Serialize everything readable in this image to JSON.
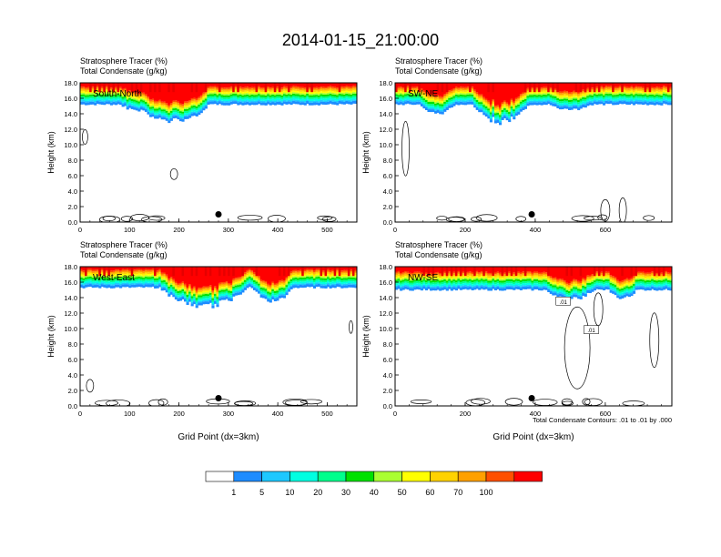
{
  "figure": {
    "title": "2014-01-15_21:00:00",
    "colors": [
      "#ffffff",
      "#1e8cff",
      "#1ec8ff",
      "#00ffe1",
      "#00ff8c",
      "#00e100",
      "#aaff32",
      "#ffff00",
      "#ffd200",
      "#ffa000",
      "#ff5000",
      "#ff0000"
    ],
    "colorbar_labels": [
      "1",
      "5",
      "10",
      "20",
      "30",
      "40",
      "50",
      "60",
      "70",
      "100"
    ],
    "contour_note": "Total Condensate Contours: .01 to .01 by .000"
  },
  "chart_data": [
    {
      "type": "heatmap",
      "label": "South-North",
      "title_line1": "Stratosphere Tracer   (%)",
      "title_line2": "Total Condensate   (g/kg)",
      "xlabel": "",
      "ylabel": "Height (km)",
      "xlim": [
        0,
        560
      ],
      "ylim": [
        0,
        18
      ],
      "xticks": [
        0,
        100,
        200,
        300,
        400,
        500
      ],
      "yticks": [
        "0.0",
        "2.0",
        "4.0",
        "6.0",
        "8.0",
        "10.0",
        "12.0",
        "14.0",
        "16.0",
        "18.0"
      ],
      "tracer_base_km": 15.2,
      "tracer_dip": [
        {
          "x": 180,
          "w": 50,
          "depth": 2.5
        },
        {
          "x": 230,
          "w": 30,
          "depth": 1.6
        },
        {
          "x": 120,
          "w": 40,
          "depth": 0.9
        }
      ],
      "marker": {
        "x": 280,
        "y": 1.0
      }
    },
    {
      "type": "heatmap",
      "label": "SW-NE",
      "title_line1": "Stratosphere Tracer   (%)",
      "title_line2": "Total Condensate   (g/kg)",
      "xlabel": "",
      "ylabel": "Height (km)",
      "xlim": [
        0,
        790
      ],
      "ylim": [
        0,
        18
      ],
      "xticks": [
        0,
        200,
        400,
        600
      ],
      "yticks": [
        "0.0",
        "2.0",
        "4.0",
        "6.0",
        "8.0",
        "10.0",
        "12.0",
        "14.0",
        "16.0",
        "18.0"
      ],
      "tracer_base_km": 15.2,
      "tracer_dip": [
        {
          "x": 300,
          "w": 80,
          "depth": 2.6
        },
        {
          "x": 120,
          "w": 50,
          "depth": 1.4
        },
        {
          "x": 500,
          "w": 60,
          "depth": 0.8
        }
      ],
      "marker": {
        "x": 390,
        "y": 1.0
      }
    },
    {
      "type": "heatmap",
      "label": "West-East",
      "title_line1": "Stratosphere Tracer   (%)",
      "title_line2": "Total Condensate   (g/kg)",
      "xlabel": "Grid Point (dx=3km)",
      "ylabel": "Height (km)",
      "xlim": [
        0,
        560
      ],
      "ylim": [
        0,
        18
      ],
      "xticks": [
        0,
        100,
        200,
        300,
        400,
        500
      ],
      "yticks": [
        "0.0",
        "2.0",
        "4.0",
        "6.0",
        "8.0",
        "10.0",
        "12.0",
        "14.0",
        "16.0",
        "18.0"
      ],
      "tracer_base_km": 15.3,
      "tracer_dip": [
        {
          "x": 250,
          "w": 90,
          "depth": 2.8
        },
        {
          "x": 390,
          "w": 40,
          "depth": 2.2
        }
      ],
      "marker": {
        "x": 280,
        "y": 1.0
      }
    },
    {
      "type": "heatmap",
      "label": "NW-SE",
      "title_line1": "Stratosphere Tracer   (%)",
      "title_line2": "Total Condensate   (g/kg)",
      "xlabel": "Grid Point (dx=3km)",
      "ylabel": "Height (km)",
      "xlim": [
        0,
        790
      ],
      "ylim": [
        0,
        18
      ],
      "xticks": [
        0,
        200,
        400,
        600
      ],
      "yticks": [
        "0.0",
        "2.0",
        "4.0",
        "6.0",
        "8.0",
        "10.0",
        "12.0",
        "14.0",
        "16.0",
        "18.0"
      ],
      "tracer_base_km": 15.0,
      "tracer_dip": [
        {
          "x": 500,
          "w": 70,
          "depth": 1.4
        },
        {
          "x": 650,
          "w": 40,
          "depth": 1.2
        }
      ],
      "marker": {
        "x": 390,
        "y": 1.0
      },
      "contour_labels": [
        {
          "text": ".01",
          "x": 480,
          "y": 13.5
        },
        {
          "text": ".01",
          "x": 560,
          "y": 9.8
        }
      ]
    }
  ]
}
